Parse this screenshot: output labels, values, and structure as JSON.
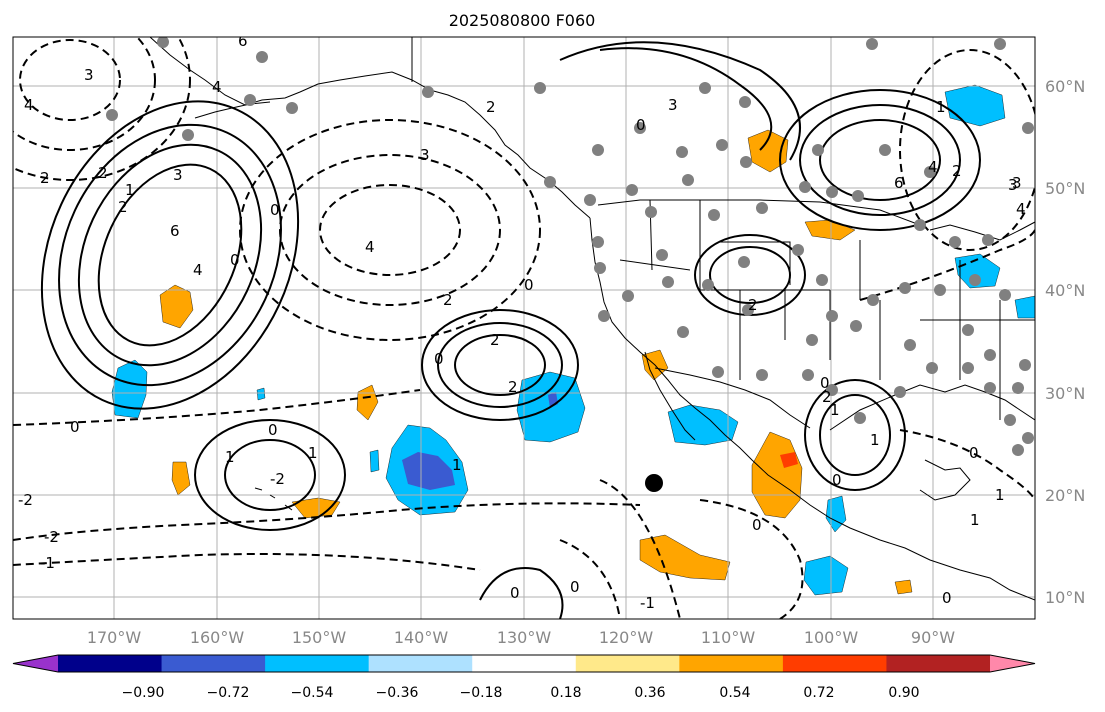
{
  "title": "2025080800 F060",
  "latitude_labels": [
    "60°N",
    "50°N",
    "40°N",
    "30°N",
    "20°N",
    "10°N"
  ],
  "longitude_labels": [
    "170°W",
    "160°W",
    "150°W",
    "140°W",
    "130°W",
    "120°W",
    "110°W",
    "100°W",
    "90°W"
  ],
  "colorbar": {
    "colors": [
      "#9932cc",
      "#00008b",
      "#3a5bd1",
      "#00bfff",
      "#aee1ff",
      "#ffffff",
      "#ffe98a",
      "#ffa500",
      "#ff3d00",
      "#b22222",
      "#ff88aa"
    ],
    "tick_labels": [
      "−0.90",
      "−0.72",
      "−0.54",
      "−0.36",
      "−0.18",
      "0.18",
      "0.36",
      "0.54",
      "0.72",
      "0.90"
    ],
    "extend": "both"
  },
  "contour_labels": [
    "6",
    "4",
    "4",
    "3",
    "2",
    "2",
    "1",
    "3",
    "6",
    "4",
    "0",
    "0",
    "2",
    "4",
    "3",
    "3",
    "0",
    "2",
    "6",
    "4",
    "3",
    "2",
    "2",
    "0",
    "2",
    "0",
    "2",
    "0",
    "-1",
    "-2",
    "0",
    "1",
    "1",
    "-2",
    "1",
    "-2",
    "-1",
    "0",
    "0",
    "0",
    "2",
    "1",
    "0",
    "1",
    "1",
    "0",
    "2",
    "1",
    "0",
    "4",
    "3",
    "0",
    "1"
  ],
  "colors": {
    "grid": "#b0b0b0",
    "coast": "#000000",
    "contour": "#000000",
    "station": "#808080",
    "marker": "#000000"
  }
}
